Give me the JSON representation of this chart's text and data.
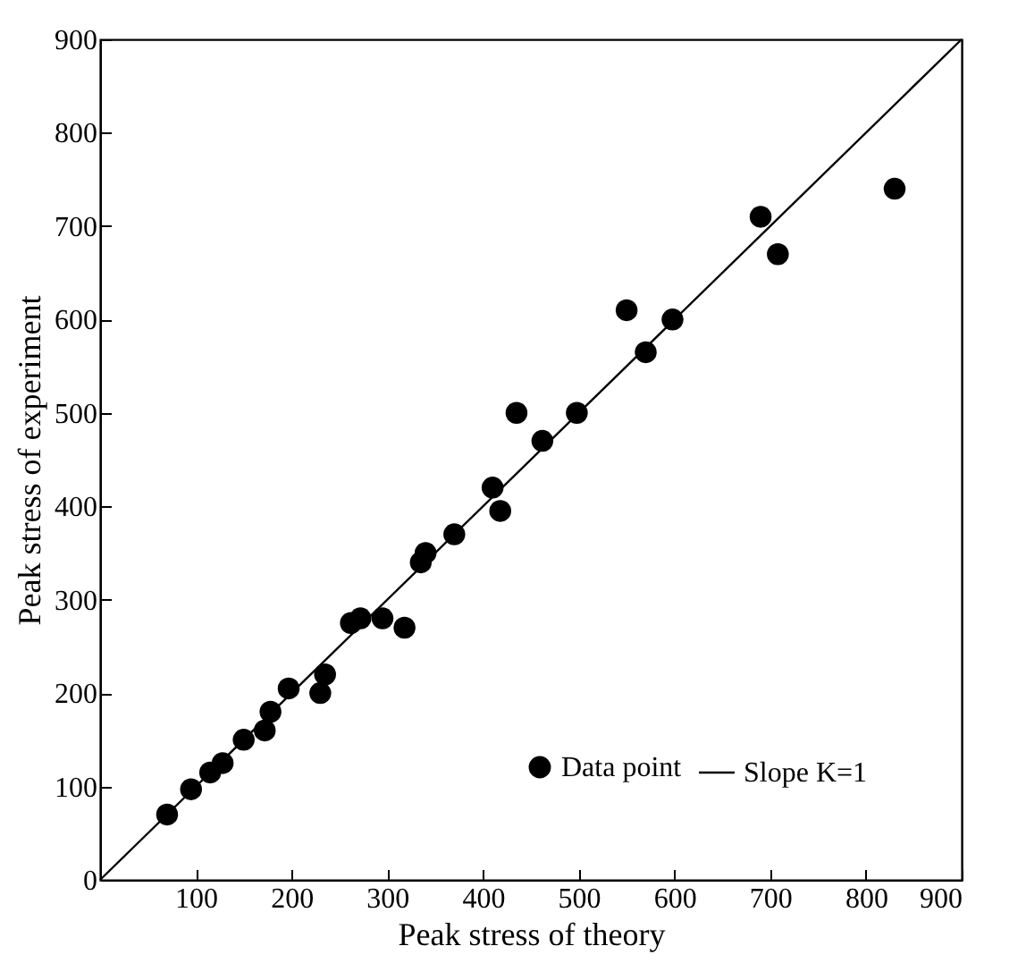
{
  "chart_data": {
    "type": "scatter",
    "xlabel": "Peak stress of theory",
    "ylabel": "Peak stress of experiment",
    "xlim": [
      0,
      900
    ],
    "ylim": [
      0,
      900
    ],
    "xticks": [
      100,
      200,
      300,
      400,
      500,
      600,
      700,
      800,
      900
    ],
    "yticks": [
      0,
      100,
      200,
      300,
      400,
      500,
      600,
      700,
      800,
      900
    ],
    "legend": "bottom right",
    "grid": false,
    "series": [
      {
        "name": "Data point",
        "type": "scatter",
        "marker": "circle",
        "color": "#000000",
        "x": [
          70,
          95,
          115,
          128,
          150,
          172,
          178,
          197,
          230,
          235,
          262,
          272,
          295,
          318,
          335,
          340,
          370,
          410,
          418,
          435,
          462,
          498,
          550,
          570,
          598,
          690,
          708,
          830
        ],
        "values": [
          70,
          97,
          115,
          125,
          150,
          160,
          180,
          205,
          200,
          220,
          275,
          280,
          280,
          270,
          340,
          350,
          370,
          420,
          395,
          500,
          470,
          500,
          610,
          565,
          600,
          710,
          670,
          740
        ]
      },
      {
        "name": "Slope K=1",
        "type": "line",
        "marker": "none",
        "line_style": "solid",
        "color": "#000000",
        "x": [
          0,
          900
        ],
        "values": [
          0,
          900
        ]
      }
    ]
  }
}
